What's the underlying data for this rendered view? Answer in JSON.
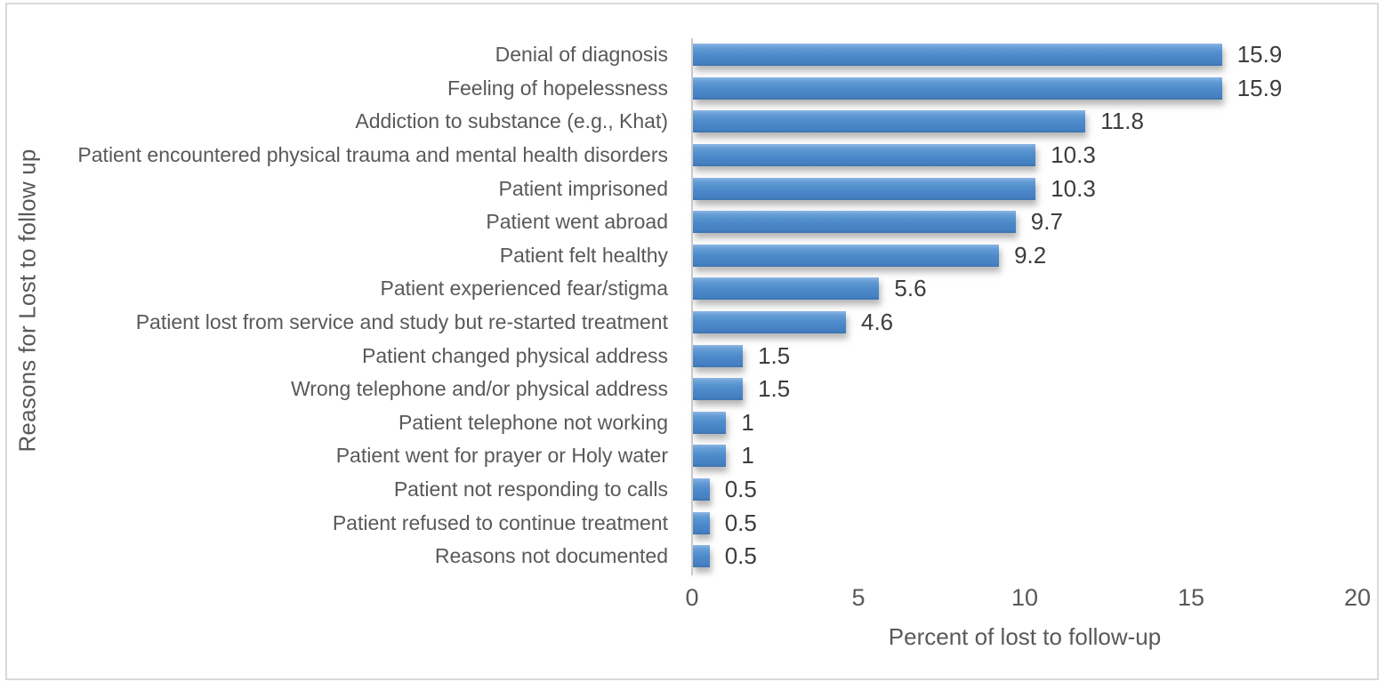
{
  "figure": {
    "background": "#ffffff",
    "border_color": "#d9d9d9",
    "bar_color": "#4a86c8",
    "text_color": "#595959"
  },
  "chart_data": {
    "type": "bar",
    "orientation": "horizontal",
    "title": "",
    "xlabel": "Percent of lost to follow-up",
    "ylabel": "Reasons for Lost to follow up",
    "xlim": [
      0,
      20
    ],
    "x_ticks": [
      0,
      5,
      10,
      15,
      20
    ],
    "grid": false,
    "legend": "none",
    "categories": [
      "Denial of diagnosis",
      "Feeling of hopelessness",
      "Addiction to substance (e.g., Khat)",
      "Patient encountered physical trauma and mental health disorders",
      "Patient imprisoned",
      "Patient went abroad",
      "Patient felt healthy",
      "Patient experienced fear/stigma",
      "Patient lost from service and study but re-started treatment",
      "Patient changed physical address",
      "Wrong telephone and/or physical address",
      "Patient telephone not working",
      "Patient went for prayer or Holy water",
      "Patient not responding to calls",
      "Patient refused to continue treatment",
      "Reasons not documented"
    ],
    "values": [
      15.9,
      15.9,
      11.8,
      10.3,
      10.3,
      9.7,
      9.2,
      5.6,
      4.6,
      1.5,
      1.5,
      1,
      1,
      0.5,
      0.5,
      0.5
    ],
    "value_labels": [
      "15.9",
      "15.9",
      "11.8",
      "10.3",
      "10.3",
      "9.7",
      "9.2",
      "5.6",
      "4.6",
      "1.5",
      "1.5",
      "1",
      "1",
      "0.5",
      "0.5",
      "0.5"
    ]
  }
}
